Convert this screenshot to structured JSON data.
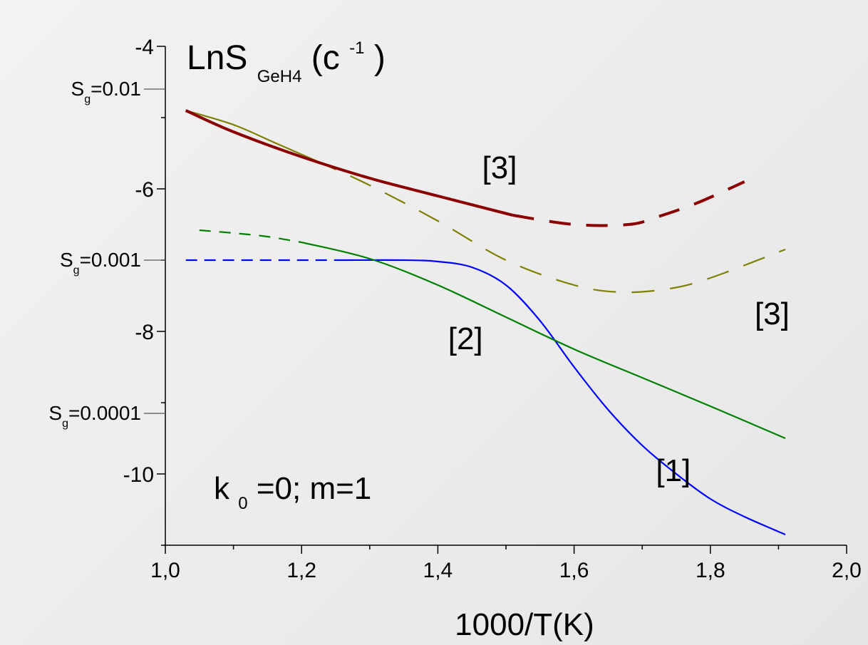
{
  "chart_data": {
    "type": "line",
    "title": "",
    "ylabel": {
      "base": "LnS",
      "sub": "GeH4",
      "paren_open": "(c",
      "sup": "-1",
      "paren_close": ")"
    },
    "xlabel": "1000/T(K)",
    "xlim": [
      1.0,
      2.0
    ],
    "ylim": [
      -11,
      -4
    ],
    "x_ticks": [
      {
        "value": 1.0,
        "label": "1,0"
      },
      {
        "value": 1.2,
        "label": "1,2"
      },
      {
        "value": 1.4,
        "label": "1,4"
      },
      {
        "value": 1.6,
        "label": "1,6"
      },
      {
        "value": 1.8,
        "label": "1,8"
      },
      {
        "value": 2.0,
        "label": "2,0"
      }
    ],
    "y_ticks": [
      {
        "value": -4,
        "label": "-4"
      },
      {
        "value": -6,
        "label": "-6"
      },
      {
        "value": -8,
        "label": "-8"
      },
      {
        "value": -10,
        "label": "-10"
      }
    ],
    "sg_markers": [
      {
        "value": -4.6,
        "base": "S",
        "sub": "g",
        "rest": "=0.01"
      },
      {
        "value": -7.0,
        "base": "S",
        "sub": "g",
        "rest": "=0.001"
      },
      {
        "value": -9.15,
        "base": "S",
        "sub": "g",
        "rest": "=0.0001"
      }
    ],
    "series": [
      {
        "color": "#0000ff",
        "dash": "16,10",
        "width": 2.2,
        "x": [
          1.03,
          1.26
        ],
        "y": [
          -7.0,
          -7.0
        ]
      },
      {
        "color": "#0000ff",
        "dash": "",
        "width": 2.2,
        "x": [
          1.26,
          1.35,
          1.4,
          1.45,
          1.5,
          1.55,
          1.6,
          1.65,
          1.7,
          1.75,
          1.8,
          1.85,
          1.91
        ],
        "y": [
          -7.0,
          -7.0,
          -7.02,
          -7.1,
          -7.35,
          -7.85,
          -8.5,
          -9.1,
          -9.6,
          -10.0,
          -10.35,
          -10.6,
          -10.85
        ]
      },
      {
        "color": "#008000",
        "dash": "16,12",
        "width": 2.2,
        "x": [
          1.05,
          1.1,
          1.15,
          1.2
        ],
        "y": [
          -6.58,
          -6.62,
          -6.67,
          -6.75
        ]
      },
      {
        "color": "#008000",
        "dash": "",
        "width": 2.2,
        "x": [
          1.2,
          1.3,
          1.4,
          1.5,
          1.6,
          1.7,
          1.8,
          1.91
        ],
        "y": [
          -6.75,
          -6.98,
          -7.35,
          -7.8,
          -8.25,
          -8.65,
          -9.05,
          -9.5
        ]
      },
      {
        "color": "#808000",
        "dash": "",
        "width": 2.2,
        "x": [
          1.03,
          1.1,
          1.16,
          1.22
        ],
        "y": [
          -4.9,
          -5.1,
          -5.35,
          -5.6
        ]
      },
      {
        "color": "#808000",
        "dash": "32,22",
        "width": 2.2,
        "x": [
          1.22,
          1.3,
          1.4,
          1.5,
          1.6,
          1.67,
          1.74,
          1.8,
          1.91
        ],
        "y": [
          -5.6,
          -5.95,
          -6.45,
          -7.0,
          -7.35,
          -7.45,
          -7.4,
          -7.25,
          -6.85
        ]
      },
      {
        "color": "#8b0000",
        "dash": "",
        "width": 4,
        "x": [
          1.03,
          1.1,
          1.2,
          1.3,
          1.4,
          1.51
        ],
        "y": [
          -4.9,
          -5.2,
          -5.55,
          -5.85,
          -6.1,
          -6.37
        ]
      },
      {
        "color": "#8b0000",
        "dash": "30,22",
        "width": 4,
        "x": [
          1.51,
          1.6,
          1.68,
          1.72,
          1.78,
          1.85
        ],
        "y": [
          -6.37,
          -6.5,
          -6.5,
          -6.4,
          -6.2,
          -5.9
        ]
      }
    ],
    "annotations": [
      {
        "text": "[3]",
        "x": 1.465,
        "y": -5.85
      },
      {
        "text": "[3]",
        "x": 1.865,
        "y": -7.9
      },
      {
        "text": "[2]",
        "x": 1.415,
        "y": -8.25
      },
      {
        "text": "[1]",
        "x": 1.72,
        "y": -10.1
      }
    ],
    "inset_text": {
      "base": "k",
      "sub": "0",
      "rest": "=0; m=1"
    }
  }
}
